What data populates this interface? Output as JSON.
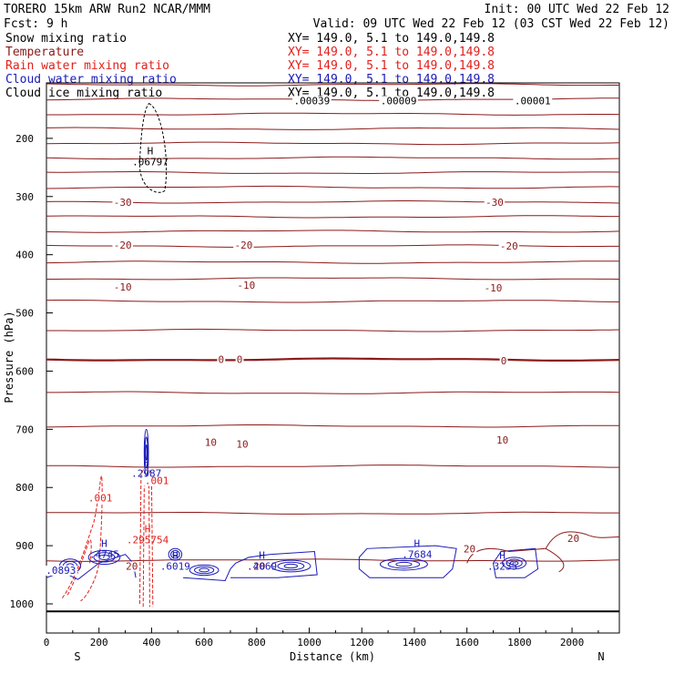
{
  "header": {
    "model": "TORERO  15km ARW   Run2    NCAR/MMM",
    "init": "Init: 00 UTC Wed 22 Feb 12",
    "fcst": "Fcst:     9 h",
    "valid": "Valid: 09 UTC Wed 22 Feb 12 (03 CST Wed 22 Feb 12)"
  },
  "legend": [
    {
      "name": "Snow mixing ratio",
      "color": "#000000",
      "xy": "XY= 149.0,  5.1 to 149.0,149.8"
    },
    {
      "name": "Temperature",
      "color": "#8b1a1a",
      "xy": "XY= 149.0,  5.1 to 149.0,149.8"
    },
    {
      "name": "Rain water mixing ratio",
      "color": "#e0201c",
      "xy": "XY= 149.0,  5.1 to 149.0,149.8"
    },
    {
      "name": "Cloud water mixing ratio",
      "color": "#1a1ab8",
      "xy": "XY= 149.0,  5.1 to 149.0,149.8"
    },
    {
      "name": "Cloud ice mixing ratio",
      "color": "#000000",
      "xy": "XY= 149.0,  5.1 to 149.0,149.8"
    }
  ],
  "chart_data": {
    "type": "contour",
    "xlabel": "Distance (km)",
    "ylabel": "Pressure (hPa)",
    "xlim": [
      0,
      2180
    ],
    "ylim": [
      1045,
      100
    ],
    "xticks": [
      0,
      200,
      400,
      600,
      800,
      1000,
      1200,
      1400,
      1600,
      1800,
      2000
    ],
    "yticks": [
      200,
      300,
      400,
      500,
      600,
      700,
      800,
      900,
      1000
    ],
    "x_ends": {
      "left": "S",
      "right": "N"
    },
    "temperature_isotherms": [
      {
        "value": -30,
        "pressure_hPa": 322
      },
      {
        "value": -20,
        "pressure_hPa": 385
      },
      {
        "value": -10,
        "pressure_hPa": 455
      },
      {
        "value": 0,
        "pressure_hPa": 580
      },
      {
        "value": 10,
        "pressure_hPa": 723
      },
      {
        "value": 20,
        "pressure_hPa": 925
      }
    ],
    "temperature_labels": [
      {
        "text": "-30",
        "x": 290,
        "p": 310
      },
      {
        "text": "-30",
        "x": 1705,
        "p": 310
      },
      {
        "text": "-30",
        "x": 290,
        "p": 310
      },
      {
        "text": "-20",
        "x": 290,
        "p": 383
      },
      {
        "text": "-20",
        "x": 750,
        "p": 383
      },
      {
        "text": "-20",
        "x": 1760,
        "p": 385
      },
      {
        "text": "-10",
        "x": 290,
        "p": 455
      },
      {
        "text": "-10",
        "x": 760,
        "p": 452
      },
      {
        "text": "-10",
        "x": 1700,
        "p": 457
      },
      {
        "text": "0",
        "x": 665,
        "p": 580
      },
      {
        "text": "0",
        "x": 735,
        "p": 580
      },
      {
        "text": "0",
        "x": 1740,
        "p": 582
      },
      {
        "text": "10",
        "x": 625,
        "p": 722
      },
      {
        "text": "10",
        "x": 745,
        "p": 725
      },
      {
        "text": "10",
        "x": 1735,
        "p": 718
      },
      {
        "text": "20",
        "x": 2005,
        "p": 887
      },
      {
        "text": "20",
        "x": 1610,
        "p": 905
      },
      {
        "text": "20",
        "x": 325,
        "p": 935
      },
      {
        "text": "20",
        "x": 810,
        "p": 935
      }
    ],
    "maxima": [
      {
        "field": "Snow mixing ratio",
        "label": "H",
        "value": ".06797",
        "x": 395,
        "p": 240
      },
      {
        "field": "Cloud water mixing ratio",
        "label": "H",
        "value": ".2987",
        "x": 380,
        "p": 775
      },
      {
        "field": "Rain water mixing ratio",
        "label": "H",
        "value": ".295754",
        "x": 385,
        "p": 890
      },
      {
        "field": "Cloud water mixing ratio",
        "label": "H",
        "value": ".4745",
        "x": 220,
        "p": 915
      },
      {
        "field": "Cloud water mixing ratio",
        "label": "H",
        "value": ".6019",
        "x": 490,
        "p": 935
      },
      {
        "field": "Cloud water mixing ratio",
        "label": "H",
        "value": ".4069",
        "x": 820,
        "p": 935
      },
      {
        "field": "Cloud water mixing ratio",
        "label": "H",
        "value": ".7684",
        "x": 1410,
        "p": 915
      },
      {
        "field": "Cloud water mixing ratio",
        "label": "H",
        "value": ".3235",
        "x": 1735,
        "p": 935
      }
    ],
    "contour_labels": [
      {
        "text": ".00039",
        "x": 1010,
        "p": 135,
        "color": "#000000"
      },
      {
        "text": ".00009",
        "x": 1340,
        "p": 135,
        "color": "#000000"
      },
      {
        "text": ".00001",
        "x": 1850,
        "p": 135,
        "color": "#000000"
      },
      {
        "text": ".001",
        "x": 420,
        "p": 788,
        "color": "#e0201c"
      },
      {
        "text": ".001",
        "x": 205,
        "p": 818,
        "color": "#e0201c"
      },
      {
        "text": ".0893",
        "x": 55,
        "p": 942,
        "color": "#1a1ab8"
      }
    ],
    "surface_pressure_hPa": 1013
  }
}
